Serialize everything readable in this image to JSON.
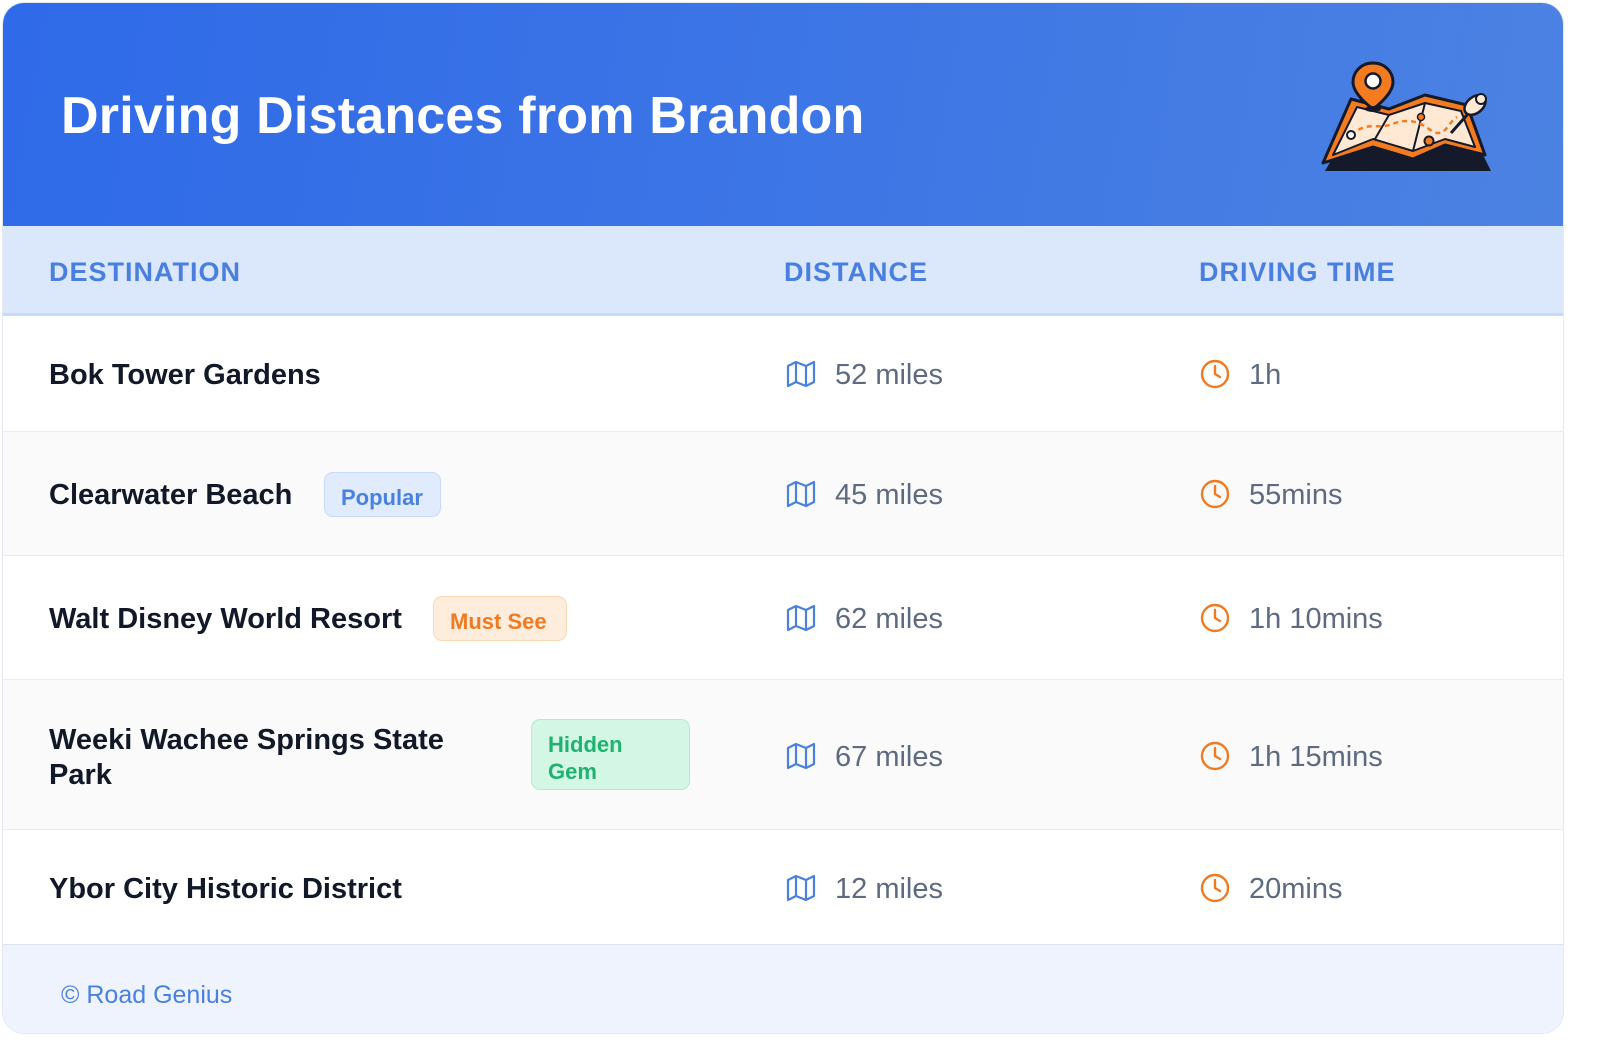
{
  "header": {
    "title": "Driving Distances from Brandon",
    "illustration": "folded-map-with-location-pin-icon"
  },
  "columns": {
    "destination": "DESTINATION",
    "distance": "DISTANCE",
    "driving_time": "DRIVING TIME"
  },
  "rows": [
    {
      "destination": "Bok Tower Gardens",
      "badge": null,
      "distance": "52 miles",
      "time": "1h"
    },
    {
      "destination": "Clearwater Beach",
      "badge": "Popular",
      "distance": "45 miles",
      "time": "55mins"
    },
    {
      "destination": "Walt Disney World Resort",
      "badge": "Must See",
      "distance": "62 miles",
      "time": "1h 10mins"
    },
    {
      "destination": "Weeki Wachee Springs State Park",
      "badge": "Hidden Gem",
      "distance": "67 miles",
      "time": "1h 15mins"
    },
    {
      "destination": "Ybor City Historic District",
      "badge": null,
      "distance": "12 miles",
      "time": "20mins"
    }
  ],
  "icons": {
    "distance": "map-icon",
    "time": "clock-icon"
  },
  "footer": {
    "credit": "© Road Genius"
  },
  "colors": {
    "header_blue": "#2f6ae8",
    "accent_blue": "#4a80de",
    "accent_orange": "#f07a22",
    "accent_green": "#1fb271"
  }
}
